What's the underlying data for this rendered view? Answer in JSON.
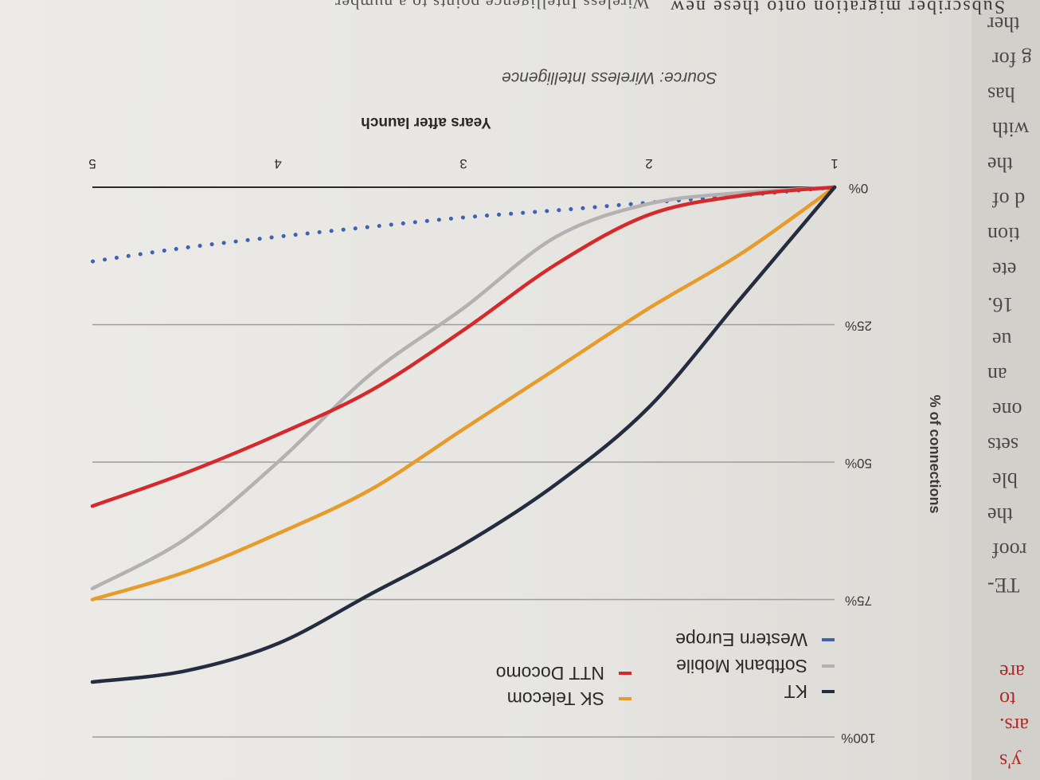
{
  "background_text": {
    "top_line": "Subscriber migration onto these new",
    "top_line_2": "Wireless Intelligence points to a number",
    "source": "Source: Wireless Intelligence",
    "margin_words": [
      "ther",
      "g for",
      "has",
      "with",
      "the",
      "d of",
      "tion",
      "ete",
      "16.",
      "ue",
      "an",
      "one",
      "sets",
      "ble",
      "the",
      "roof",
      "TE-"
    ],
    "margin_words_red": [
      "ars.",
      "to",
      "are",
      "y's"
    ]
  },
  "chart_data": {
    "type": "line",
    "orientation_note": "Page photographed upside down",
    "xlabel": "Years after launch",
    "ylabel": "% of connections",
    "x_ticks": [
      "1",
      "2",
      "3",
      "4",
      "5"
    ],
    "y_ticks": [
      "0%",
      "25%",
      "50%",
      "75%",
      "100%"
    ],
    "xlim": [
      1,
      5
    ],
    "ylim": [
      0,
      100
    ],
    "grid": true,
    "legend_position": "bottom-right (as photographed)",
    "source": "Source: Wireless Intelligence",
    "series": [
      {
        "name": "KT",
        "color": "#242c3f",
        "style": "solid",
        "x": [
          1,
          1.5,
          2,
          2.5,
          3,
          3.5,
          4,
          4.5,
          5
        ],
        "y": [
          0,
          20,
          40,
          54,
          65,
          74,
          83,
          88,
          90
        ]
      },
      {
        "name": "SK Telecom",
        "color": "#e69b2b",
        "style": "solid",
        "x": [
          1,
          1.5,
          2,
          2.5,
          3,
          3.5,
          4,
          4.5,
          5
        ],
        "y": [
          0,
          12,
          22,
          33,
          44,
          55,
          63,
          70,
          75
        ]
      },
      {
        "name": "NTT Docomo",
        "color": "#d42a2b",
        "style": "solid",
        "x": [
          1,
          1.5,
          2,
          2.5,
          3,
          3.5,
          4,
          4.5,
          5
        ],
        "y": [
          0,
          1.5,
          5,
          14,
          26,
          37,
          45,
          52,
          58
        ]
      },
      {
        "name": "Softbank Mobile",
        "color": "#b3b1b3",
        "style": "solid",
        "x": [
          1,
          1.5,
          2,
          2.5,
          3,
          3.5,
          4,
          4.5,
          5
        ],
        "y": [
          0,
          1,
          3,
          9,
          22,
          34,
          50,
          64,
          73
        ]
      },
      {
        "name": "Western Europe",
        "color": "#3d62b4",
        "style": "dotted",
        "x": [
          1,
          1.5,
          2,
          2.5,
          3,
          3.5,
          4,
          4.5,
          5
        ],
        "y": [
          0,
          1.5,
          2.8,
          4.2,
          5.5,
          7.2,
          9,
          11,
          13.5
        ]
      }
    ]
  }
}
